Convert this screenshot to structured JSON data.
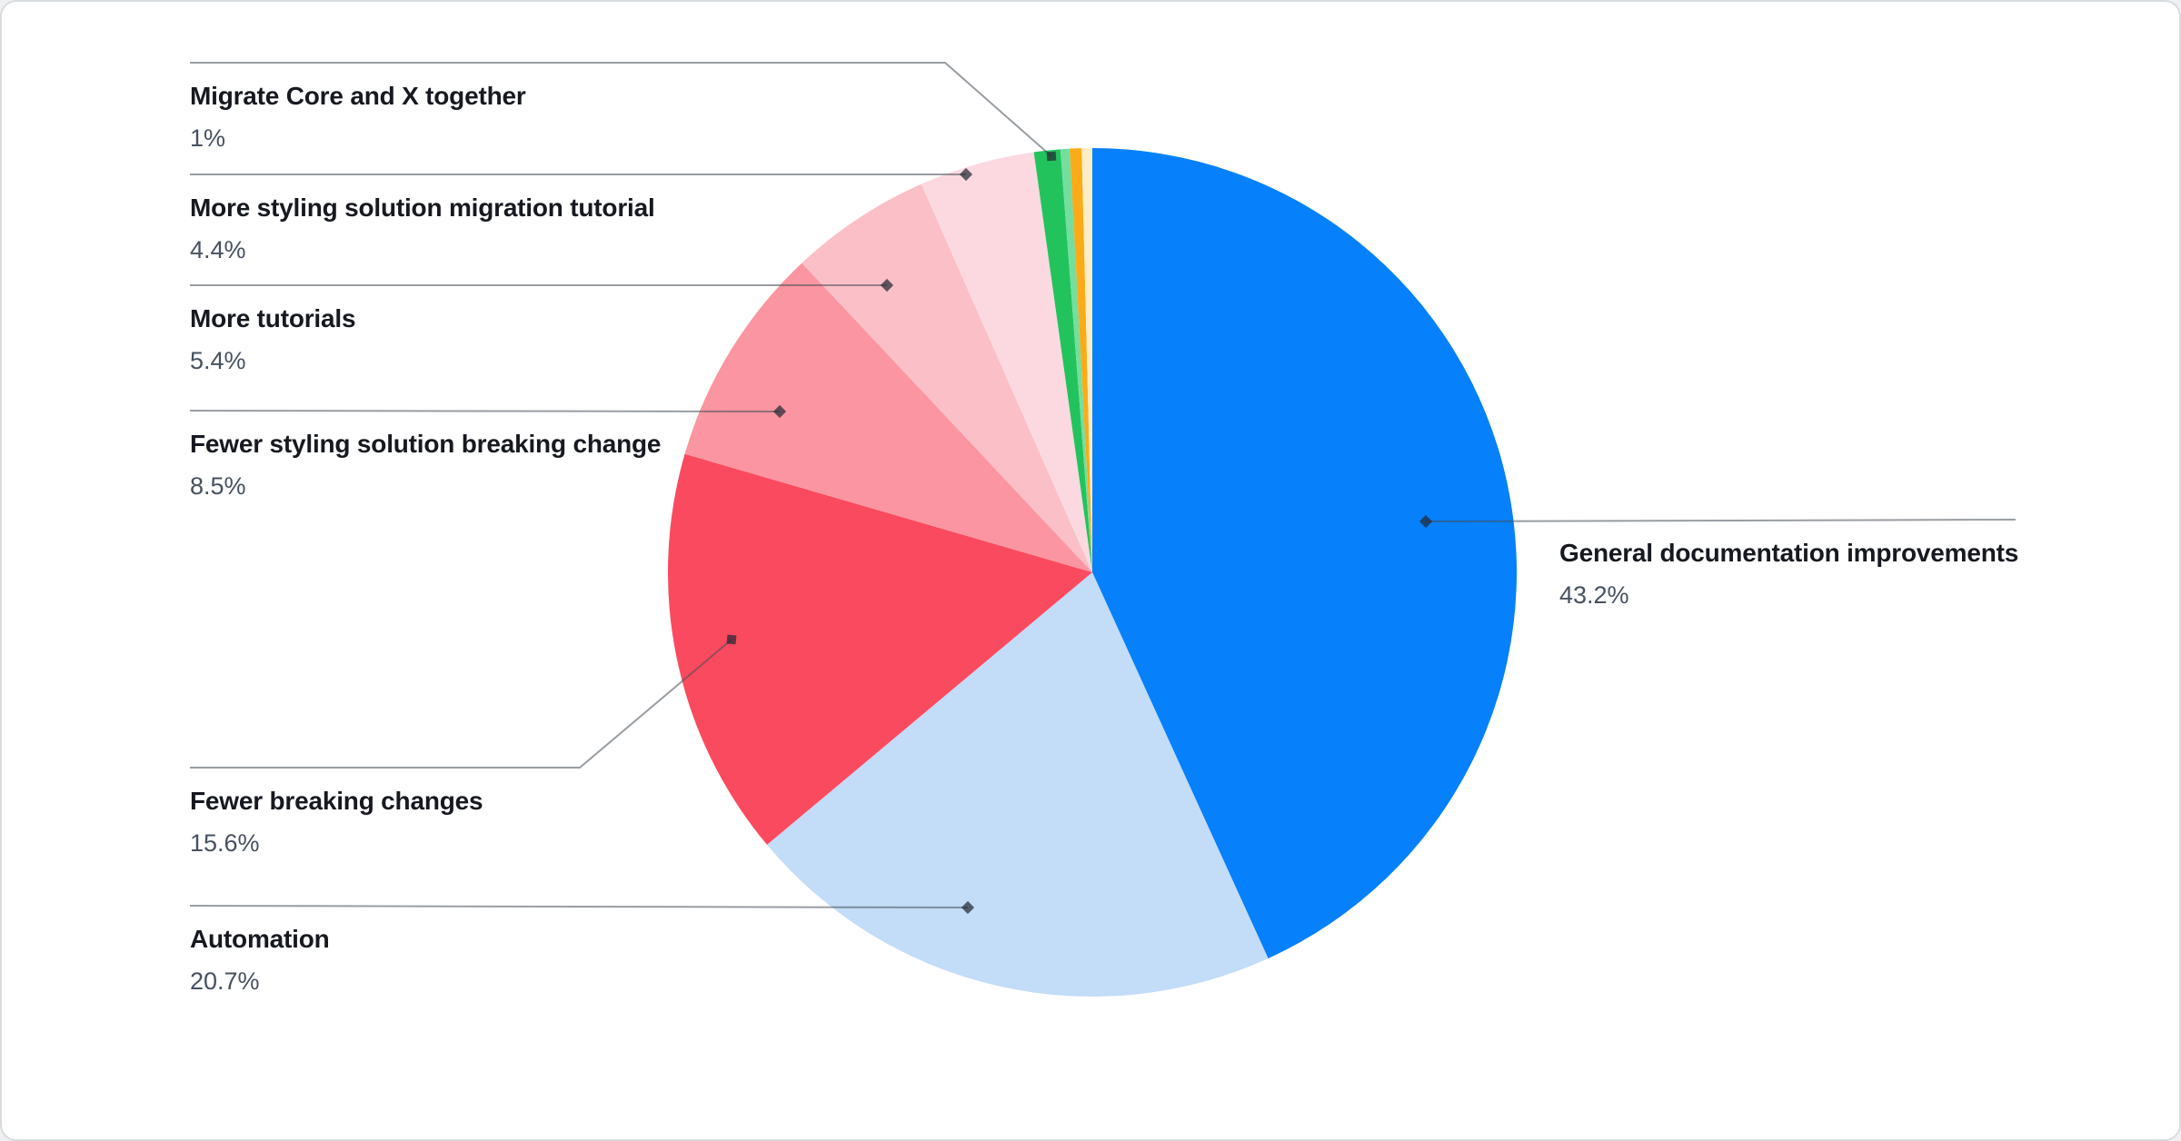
{
  "chart_data": {
    "type": "pie",
    "title": "",
    "legend_position": "callout-labels",
    "direction": "clockwise",
    "start_angle_deg": 0,
    "slices": [
      {
        "label": "General documentation improvements",
        "value": 43.2,
        "pct_label": "43.2%",
        "color": "#0680fb"
      },
      {
        "label": "Automation",
        "value": 20.7,
        "pct_label": "20.7%",
        "color": "#c3dcf7"
      },
      {
        "label": "Fewer breaking changes",
        "value": 15.6,
        "pct_label": "15.6%",
        "color": "#fa4a60"
      },
      {
        "label": "Fewer styling solution breaking change",
        "value": 8.5,
        "pct_label": "8.5%",
        "color": "#fb95a1"
      },
      {
        "label": "More tutorials",
        "value": 5.4,
        "pct_label": "5.4%",
        "color": "#fbbfc8"
      },
      {
        "label": "More styling solution migration tutorial",
        "value": 4.4,
        "pct_label": "4.4%",
        "color": "#fcd9e0"
      },
      {
        "label": "Migrate Core and X together",
        "value": 1.0,
        "pct_label": "1%",
        "color": "#22c35d"
      },
      {
        "label": "",
        "value": 0.35,
        "pct_label": "",
        "color": "#74de9f"
      },
      {
        "label": "",
        "value": 0.45,
        "pct_label": "",
        "color": "#fbab18"
      },
      {
        "label": "",
        "value": 0.4,
        "pct_label": "",
        "color": "#fcedc4"
      }
    ],
    "callout_line_color": "rgba(68,76,86,0.55)",
    "callout_marker_color": "rgba(35,42,52,0.72)",
    "label_text_color": "#16191f",
    "percent_text_color": "#47515f",
    "background_color": "#ffffff"
  }
}
